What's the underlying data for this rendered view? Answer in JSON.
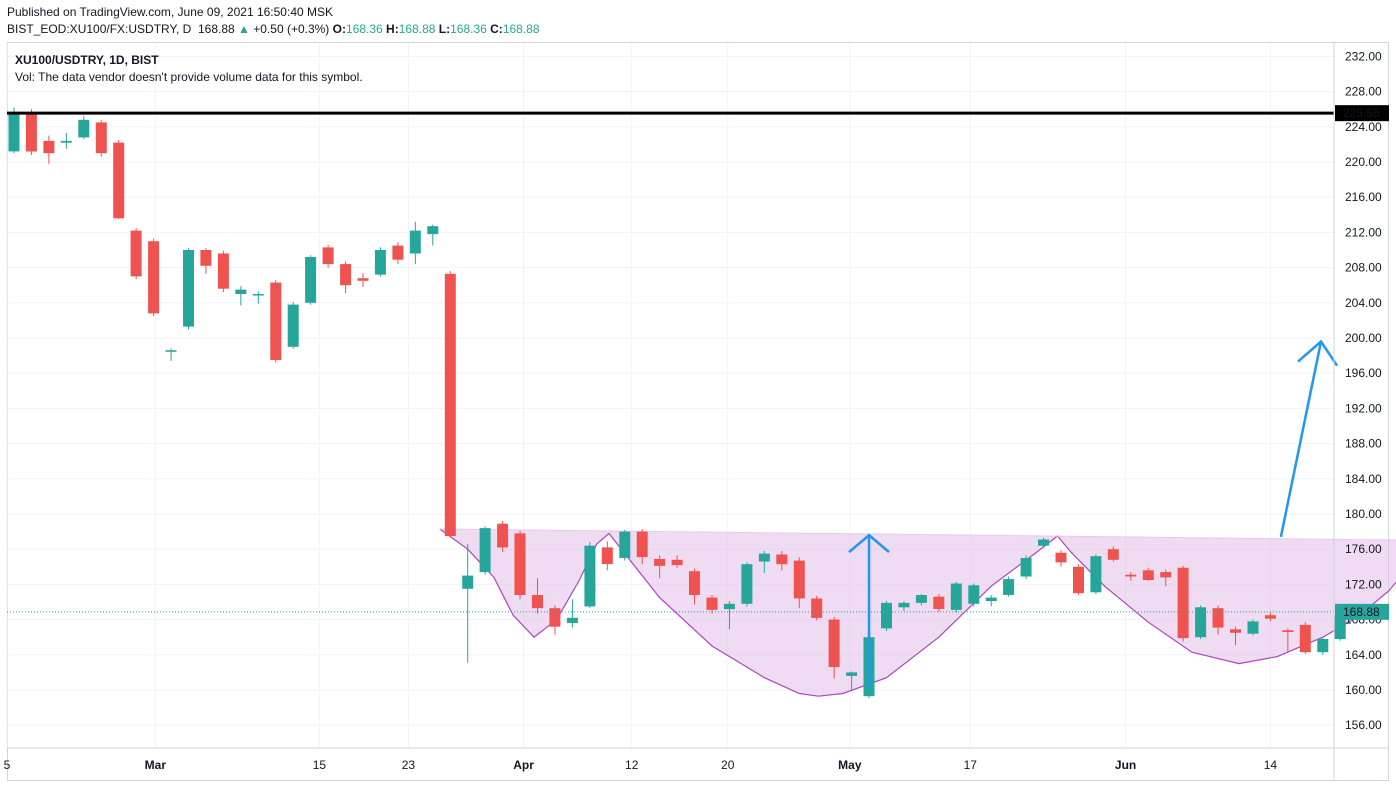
{
  "header": {
    "published": "Published on TradingView.com, June 09, 2021 16:50:40 MSK",
    "symbol_full": "BIST_EOD:XU100/FX:USDTRY, D",
    "last": "168.88",
    "change": "+0.50 (+0.3%)",
    "o_label": "O:",
    "o_value": "168.36",
    "h_label": "H:",
    "h_value": "168.88",
    "l_label": "L:",
    "l_value": "168.36",
    "c_label": "C:",
    "c_value": "168.88"
  },
  "legend": {
    "symbol": "XU100/USDTRY, 1D, BIST",
    "volume_note": "Vol: The data vendor doesn't provide volume data for this symbol."
  },
  "colors": {
    "up": "#26a69a",
    "down": "#ef5350",
    "pattern_fill": "#e1bee7",
    "pattern_line": "#ab47bc",
    "arrow": "#2196f3",
    "resistance": "#000000"
  },
  "chart_data": {
    "type": "candlestick",
    "ylim": [
      153,
      234
    ],
    "y_ticks": [
      "156.00",
      "160.00",
      "164.00",
      "168.00",
      "172.00",
      "176.00",
      "180.00",
      "184.00",
      "188.00",
      "192.00",
      "196.00",
      "200.00",
      "204.00",
      "208.00",
      "212.00",
      "216.00",
      "220.00",
      "224.00",
      "228.00",
      "232.00"
    ],
    "x_ticks": [
      {
        "label": "5",
        "bold": false
      },
      {
        "label": "Mar",
        "bold": true
      },
      {
        "label": "15",
        "bold": false
      },
      {
        "label": "23",
        "bold": false
      },
      {
        "label": "Apr",
        "bold": true
      },
      {
        "label": "12",
        "bold": false
      },
      {
        "label": "20",
        "bold": false
      },
      {
        "label": "May",
        "bold": true
      },
      {
        "label": "17",
        "bold": false
      },
      {
        "label": "Jun",
        "bold": true
      },
      {
        "label": "14",
        "bold": false
      }
    ],
    "last_price_label": "168.88",
    "last_price": 168.88,
    "resistance_label": "225.55",
    "resistance": 225.55,
    "candles": [
      {
        "o": 221.2,
        "h": 226.2,
        "l": 221.0,
        "c": 225.5
      },
      {
        "o": 225.4,
        "h": 226.0,
        "l": 220.8,
        "c": 221.2
      },
      {
        "o": 222.4,
        "h": 223.0,
        "l": 219.8,
        "c": 221.0
      },
      {
        "o": 222.2,
        "h": 223.3,
        "l": 221.5,
        "c": 222.4
      },
      {
        "o": 222.8,
        "h": 225.2,
        "l": 222.6,
        "c": 224.8
      },
      {
        "o": 224.5,
        "h": 224.8,
        "l": 220.6,
        "c": 221.0
      },
      {
        "o": 222.2,
        "h": 222.5,
        "l": 213.5,
        "c": 213.6
      },
      {
        "o": 212.2,
        "h": 212.5,
        "l": 206.7,
        "c": 207.0
      },
      {
        "o": 211.0,
        "h": 211.3,
        "l": 202.5,
        "c": 202.8
      },
      {
        "o": 198.5,
        "h": 198.8,
        "l": 197.4,
        "c": 198.6
      },
      {
        "o": 201.3,
        "h": 210.2,
        "l": 201.0,
        "c": 210.0
      },
      {
        "o": 210.0,
        "h": 210.2,
        "l": 207.3,
        "c": 208.2
      },
      {
        "o": 209.6,
        "h": 209.9,
        "l": 205.2,
        "c": 205.6
      },
      {
        "o": 205.0,
        "h": 205.9,
        "l": 203.7,
        "c": 205.5
      },
      {
        "o": 205.0,
        "h": 205.3,
        "l": 203.9,
        "c": 205.0
      },
      {
        "o": 206.3,
        "h": 206.6,
        "l": 197.2,
        "c": 197.5
      },
      {
        "o": 199.0,
        "h": 204.1,
        "l": 198.8,
        "c": 203.8
      },
      {
        "o": 204.0,
        "h": 209.4,
        "l": 203.8,
        "c": 209.2
      },
      {
        "o": 210.3,
        "h": 210.6,
        "l": 208.0,
        "c": 208.4
      },
      {
        "o": 208.4,
        "h": 208.7,
        "l": 205.1,
        "c": 206.0
      },
      {
        "o": 206.8,
        "h": 207.4,
        "l": 205.8,
        "c": 206.5
      },
      {
        "o": 207.2,
        "h": 210.3,
        "l": 207.0,
        "c": 210.0
      },
      {
        "o": 210.5,
        "h": 210.9,
        "l": 208.4,
        "c": 208.9
      },
      {
        "o": 209.6,
        "h": 213.2,
        "l": 208.4,
        "c": 212.2
      },
      {
        "o": 211.8,
        "h": 212.9,
        "l": 210.5,
        "c": 212.7
      },
      {
        "o": 207.3,
        "h": 207.6,
        "l": 177.3,
        "c": 177.5
      },
      {
        "o": 171.5,
        "h": 176.6,
        "l": 163.1,
        "c": 173.0
      },
      {
        "o": 173.4,
        "h": 178.6,
        "l": 173.1,
        "c": 178.4
      },
      {
        "o": 178.9,
        "h": 179.2,
        "l": 175.7,
        "c": 176.2
      },
      {
        "o": 177.8,
        "h": 178.1,
        "l": 170.3,
        "c": 170.8
      },
      {
        "o": 170.8,
        "h": 172.7,
        "l": 168.7,
        "c": 169.3
      },
      {
        "o": 169.3,
        "h": 169.6,
        "l": 166.3,
        "c": 167.2
      },
      {
        "o": 167.6,
        "h": 170.3,
        "l": 167.1,
        "c": 168.2
      },
      {
        "o": 169.5,
        "h": 176.8,
        "l": 169.3,
        "c": 176.4
      },
      {
        "o": 176.2,
        "h": 176.9,
        "l": 173.6,
        "c": 174.3
      },
      {
        "o": 175.0,
        "h": 178.2,
        "l": 174.7,
        "c": 178.0
      },
      {
        "o": 178.0,
        "h": 178.3,
        "l": 174.3,
        "c": 175.1
      },
      {
        "o": 174.9,
        "h": 175.3,
        "l": 172.7,
        "c": 174.1
      },
      {
        "o": 174.8,
        "h": 175.3,
        "l": 173.9,
        "c": 174.2
      },
      {
        "o": 173.5,
        "h": 173.8,
        "l": 169.7,
        "c": 170.8
      },
      {
        "o": 170.5,
        "h": 170.8,
        "l": 168.7,
        "c": 169.1
      },
      {
        "o": 169.2,
        "h": 170.1,
        "l": 166.9,
        "c": 169.8
      },
      {
        "o": 169.8,
        "h": 174.5,
        "l": 169.5,
        "c": 174.3
      },
      {
        "o": 174.6,
        "h": 175.8,
        "l": 173.3,
        "c": 175.5
      },
      {
        "o": 175.4,
        "h": 175.8,
        "l": 173.6,
        "c": 174.3
      },
      {
        "o": 174.7,
        "h": 175.1,
        "l": 169.3,
        "c": 170.4
      },
      {
        "o": 170.4,
        "h": 170.7,
        "l": 167.9,
        "c": 168.2
      },
      {
        "o": 168.0,
        "h": 168.3,
        "l": 161.3,
        "c": 162.6
      },
      {
        "o": 161.6,
        "h": 162.1,
        "l": 160.0,
        "c": 162.0
      },
      {
        "o": 159.3,
        "h": 166.2,
        "l": 159.1,
        "c": 166.0
      },
      {
        "o": 167.0,
        "h": 170.1,
        "l": 166.7,
        "c": 169.9
      },
      {
        "o": 169.4,
        "h": 170.1,
        "l": 169.0,
        "c": 169.9
      },
      {
        "o": 169.9,
        "h": 170.9,
        "l": 169.6,
        "c": 170.8
      },
      {
        "o": 170.6,
        "h": 170.9,
        "l": 168.9,
        "c": 169.2
      },
      {
        "o": 169.1,
        "h": 172.3,
        "l": 168.8,
        "c": 172.1
      },
      {
        "o": 169.8,
        "h": 172.1,
        "l": 169.5,
        "c": 171.9
      },
      {
        "o": 170.1,
        "h": 170.8,
        "l": 169.5,
        "c": 170.5
      },
      {
        "o": 170.8,
        "h": 172.9,
        "l": 170.6,
        "c": 172.6
      },
      {
        "o": 172.9,
        "h": 175.3,
        "l": 172.6,
        "c": 175.0
      },
      {
        "o": 176.4,
        "h": 177.3,
        "l": 176.1,
        "c": 177.1
      },
      {
        "o": 175.6,
        "h": 175.9,
        "l": 174.0,
        "c": 174.5
      },
      {
        "o": 174.0,
        "h": 174.3,
        "l": 170.8,
        "c": 171.0
      },
      {
        "o": 171.1,
        "h": 175.4,
        "l": 170.9,
        "c": 175.2
      },
      {
        "o": 176.0,
        "h": 176.3,
        "l": 174.6,
        "c": 174.8
      },
      {
        "o": 173.1,
        "h": 173.4,
        "l": 172.4,
        "c": 172.9
      },
      {
        "o": 173.6,
        "h": 173.9,
        "l": 172.4,
        "c": 172.5
      },
      {
        "o": 173.4,
        "h": 173.7,
        "l": 171.8,
        "c": 172.8
      },
      {
        "o": 173.9,
        "h": 174.1,
        "l": 165.5,
        "c": 165.9
      },
      {
        "o": 166.0,
        "h": 169.6,
        "l": 165.8,
        "c": 169.4
      },
      {
        "o": 169.3,
        "h": 169.6,
        "l": 166.3,
        "c": 167.1
      },
      {
        "o": 166.9,
        "h": 167.2,
        "l": 165.1,
        "c": 166.5
      },
      {
        "o": 166.4,
        "h": 168.0,
        "l": 166.2,
        "c": 167.8
      },
      {
        "o": 168.5,
        "h": 168.8,
        "l": 167.8,
        "c": 168.1
      },
      {
        "o": 166.8,
        "h": 167.0,
        "l": 164.4,
        "c": 166.6
      },
      {
        "o": 167.4,
        "h": 167.7,
        "l": 164.1,
        "c": 164.3
      },
      {
        "o": 164.3,
        "h": 166.0,
        "l": 164.0,
        "c": 165.8
      },
      {
        "o": 165.8,
        "h": 168.7,
        "l": 165.6,
        "c": 168.5
      },
      {
        "o": 168.2,
        "h": 168.6,
        "l": 168.0,
        "c": 168.3
      },
      {
        "o": 168.36,
        "h": 168.88,
        "l": 168.36,
        "c": 168.88
      }
    ]
  }
}
